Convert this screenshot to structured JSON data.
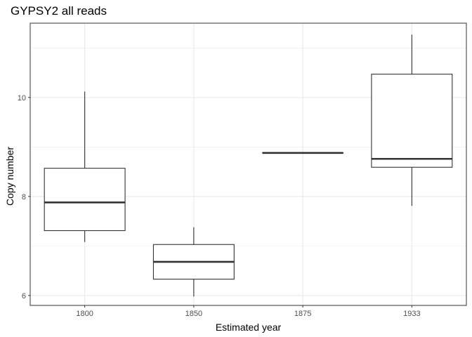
{
  "chart_data": {
    "type": "box",
    "title": "GYPSY2 all reads",
    "xlabel": "Estimated year",
    "ylabel": "Copy number",
    "categories": [
      "1800",
      "1850",
      "1875",
      "1933"
    ],
    "boxes": [
      {
        "category": "1800",
        "min": 7.08,
        "q1": 7.31,
        "median": 7.88,
        "q3": 8.57,
        "max": 10.12
      },
      {
        "category": "1850",
        "min": 5.98,
        "q1": 6.33,
        "median": 6.68,
        "q3": 7.03,
        "max": 7.38
      },
      {
        "category": "1875",
        "min": 8.88,
        "q1": 8.88,
        "median": 8.88,
        "q3": 8.88,
        "max": 8.88
      },
      {
        "category": "1933",
        "min": 7.81,
        "q1": 8.59,
        "median": 8.76,
        "q3": 10.47,
        "max": 11.27
      }
    ],
    "yticks": [
      6,
      8,
      10
    ],
    "ylim": [
      5.8,
      11.5
    ],
    "grid": true,
    "colors": {
      "panel_border": "#333333",
      "grid": "#ebebeb",
      "box": "#333333",
      "fill": "#ffffff",
      "tick_text": "#4d4d4d"
    }
  }
}
